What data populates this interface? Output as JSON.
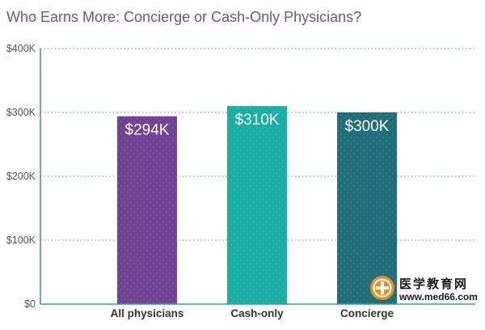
{
  "chart_data": {
    "type": "bar",
    "title": "Who Earns More: Concierge or Cash-Only Physicians?",
    "categories": [
      "All physicians",
      "Cash-only",
      "Concierge"
    ],
    "values": [
      294,
      310,
      300
    ],
    "value_labels": [
      "$294K",
      "$310K",
      "$300K"
    ],
    "ylim": [
      0,
      400
    ],
    "yticks": [
      0,
      100,
      200,
      300,
      400
    ],
    "ytick_labels": [
      "$0",
      "$100K",
      "$200K",
      "$300K",
      "$400K"
    ],
    "colors": [
      "#6f4393",
      "#1aaea5",
      "#1f6e7a"
    ],
    "grid": true
  },
  "watermark": {
    "text_cn": "医学教育网",
    "text_url": "www.med66.com"
  }
}
